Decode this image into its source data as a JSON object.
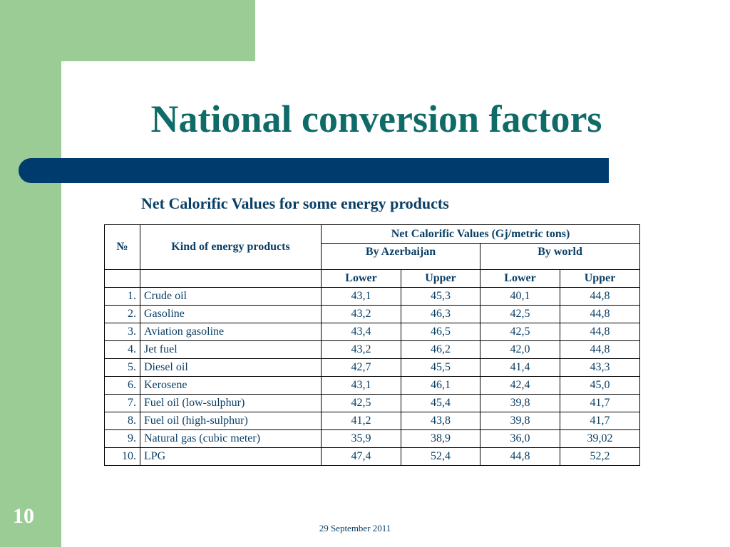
{
  "slide": {
    "title": "National conversion factors",
    "subtitle": "Net Calorific Values for some energy products",
    "page_number": "10",
    "date": "29 September 2011",
    "colors": {
      "accent_green": "#9ccc96",
      "title_teal": "#0f6b68",
      "bar_navy": "#003b6e",
      "text_navy": "#0a3f66"
    }
  },
  "table": {
    "header": {
      "no": "№",
      "kind": "Kind of energy products",
      "ncv": "Net Calorific Values (Gj/metric tons)",
      "by_azerbaijan": "By Azerbaijan",
      "by_world": "By world",
      "lower": "Lower",
      "upper": "Upper"
    },
    "rows": [
      {
        "no": "1.",
        "name": "Crude oil",
        "az_lower": "43,1",
        "az_upper": "45,3",
        "w_lower": "40,1",
        "w_upper": "44,8"
      },
      {
        "no": "2.",
        "name": "Gasoline",
        "az_lower": "43,2",
        "az_upper": "46,3",
        "w_lower": "42,5",
        "w_upper": "44,8"
      },
      {
        "no": "3.",
        "name": "Aviation gasoline",
        "az_lower": "43,4",
        "az_upper": "46,5",
        "w_lower": "42,5",
        "w_upper": "44,8"
      },
      {
        "no": "4.",
        "name": "Jet fuel",
        "az_lower": "43,2",
        "az_upper": "46,2",
        "w_lower": "42,0",
        "w_upper": "44,8"
      },
      {
        "no": "5.",
        "name": "Diesel oil",
        "az_lower": "42,7",
        "az_upper": "45,5",
        "w_lower": "41,4",
        "w_upper": "43,3"
      },
      {
        "no": "6.",
        "name": "Kerosene",
        "az_lower": "43,1",
        "az_upper": "46,1",
        "w_lower": "42,4",
        "w_upper": "45,0"
      },
      {
        "no": "7.",
        "name": "Fuel oil (low-sulphur)",
        "az_lower": "42,5",
        "az_upper": "45,4",
        "w_lower": "39,8",
        "w_upper": "41,7"
      },
      {
        "no": "8.",
        "name": "Fuel oil (high-sulphur)",
        "az_lower": "41,2",
        "az_upper": "43,8",
        "w_lower": "39,8",
        "w_upper": "41,7"
      },
      {
        "no": "9.",
        "name": "Natural gas (cubic meter)",
        "az_lower": "35,9",
        "az_upper": "38,9",
        "w_lower": "36,0",
        "w_upper": "39,02"
      },
      {
        "no": "10.",
        "name": "LPG",
        "az_lower": "47,4",
        "az_upper": "52,4",
        "w_lower": "44,8",
        "w_upper": "52,2"
      }
    ]
  }
}
